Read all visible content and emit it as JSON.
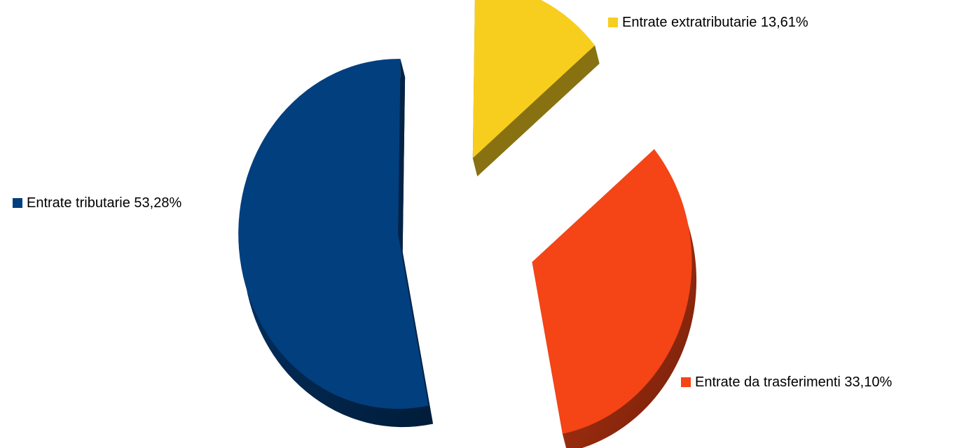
{
  "chart_data": {
    "type": "pie",
    "style": "3d-exploded",
    "title": "",
    "legend": "none",
    "slices": [
      {
        "label": "Entrate tributarie",
        "value": 53.28,
        "value_text": "53,28%",
        "color": "#023f7f",
        "text": "Entrate tributarie 53,28%"
      },
      {
        "label": "Entrate da trasferimenti",
        "value": 33.1,
        "value_text": "33,10%",
        "color": "#f54416",
        "text": "Entrate da trasferimenti 33,10%"
      },
      {
        "label": "Entrate extratributarie",
        "value": 13.61,
        "value_text": "13,61%",
        "color": "#f7ce1e",
        "text": "Entrate extratributarie 13,61%"
      }
    ]
  }
}
